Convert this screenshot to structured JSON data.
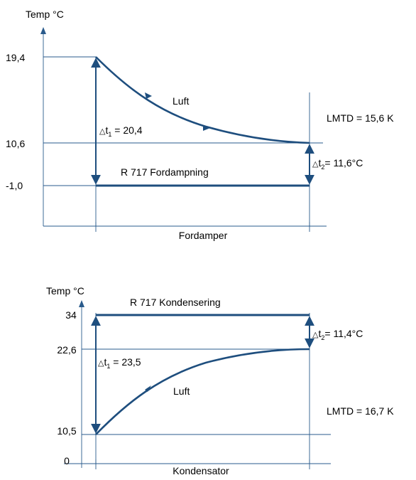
{
  "evaporator": {
    "y_axis_label": "Temp °C",
    "tick_labels": [
      "19,4",
      "10,6",
      "-1,0"
    ],
    "curve_label": "Luft",
    "dt1_prefix": "t",
    "dt1_sub": "1",
    "dt1_value": " = 20,4",
    "dt2_prefix": "t",
    "dt2_sub": "2",
    "dt2_value": "= 11,6°C",
    "lmtd": "LMTD = 15,6 K",
    "line_label": "R 717 Fordampning",
    "caption": "Fordamper"
  },
  "condenser": {
    "y_axis_label": "Temp °C",
    "tick_labels": [
      "34",
      "22,6",
      "10,5",
      "0"
    ],
    "curve_label": "Luft",
    "dt1_prefix": "t",
    "dt1_sub": "1",
    "dt1_value": " = 23,5",
    "dt2_prefix": "t",
    "dt2_sub": "2",
    "dt2_value": "= 11,4°C",
    "lmtd": "LMTD = 16,7 K",
    "line_label": "R 717 Kondensering",
    "caption": "Kondensator"
  },
  "colors": {
    "line": "#1e4e7e",
    "guide": "#2a5b8c"
  },
  "delta_symbol": "△"
}
